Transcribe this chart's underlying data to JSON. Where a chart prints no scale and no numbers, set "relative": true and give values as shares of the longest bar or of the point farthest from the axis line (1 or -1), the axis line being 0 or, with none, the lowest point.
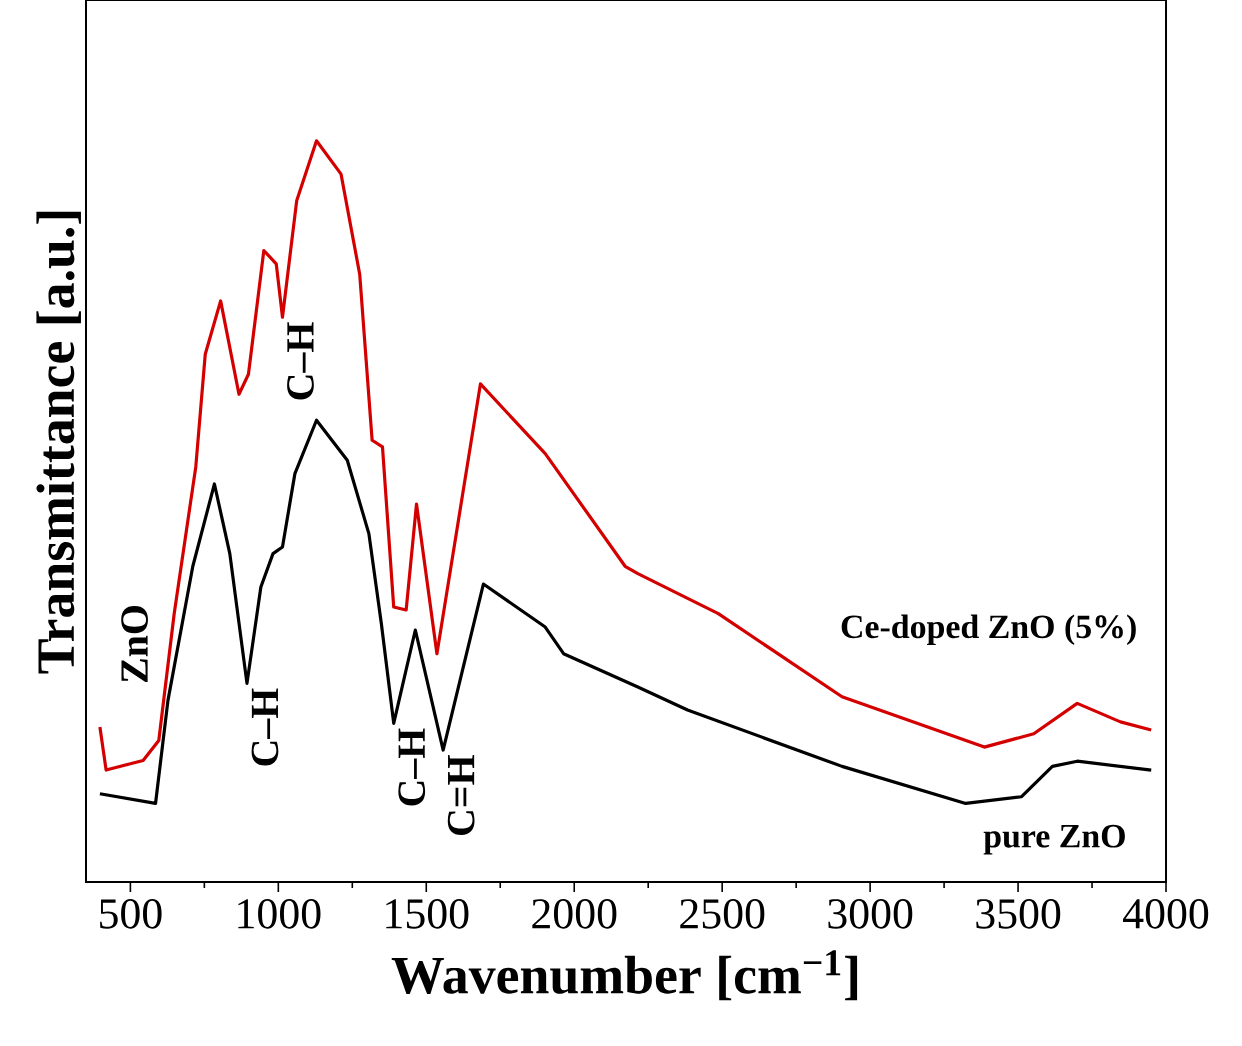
{
  "chart_data": {
    "type": "line",
    "xlabel": "Wavenumber [cm$^{−1}$]",
    "ylabel": "Transmittance [a.u.]",
    "relative": true,
    "xlim": [
      350,
      4000
    ],
    "xticks": [
      500,
      1000,
      1500,
      2000,
      2500,
      3000,
      3500,
      4000
    ],
    "legend": false,
    "marker": "none",
    "line_style": "solid",
    "annotations": [
      "ZnO",
      {
        "text": "C–H",
        "x": 894,
        "y": 0.268
      },
      {
        "text": "C–H",
        "x": 1014,
        "y": 0.762
      },
      {
        "text": "C–H",
        "x": 1390,
        "y": 0.214
      },
      {
        "text": "C=H",
        "x": 1557,
        "y": 0.178
      }
    ],
    "series": [
      {
        "name": "pure ZnO",
        "color": "#000000",
        "x": [
          397,
          585,
          627,
          711,
          784,
          836,
          894,
          941,
          982,
          1014,
          1056,
          1129,
          1233,
          1306,
          1348,
          1390,
          1463,
          1557,
          1693,
          1902,
          1964,
          2215,
          2383,
          2905,
          3323,
          3511,
          3616,
          3700,
          3950
        ],
        "values": [
          0.119,
          0.106,
          0.245,
          0.426,
          0.537,
          0.443,
          0.268,
          0.398,
          0.443,
          0.452,
          0.551,
          0.623,
          0.569,
          0.47,
          0.349,
          0.214,
          0.34,
          0.178,
          0.402,
          0.344,
          0.308,
          0.263,
          0.232,
          0.156,
          0.106,
          0.115,
          0.156,
          0.163,
          0.151
        ]
      },
      {
        "name": "Ce-doped ZnO (5%)",
        "color": "#d40000",
        "x": [
          397,
          418,
          543,
          596,
          648,
          721,
          753,
          805,
          867,
          899,
          951,
          993,
          1014,
          1062,
          1129,
          1212,
          1275,
          1317,
          1352,
          1390,
          1432,
          1467,
          1536,
          1683,
          1902,
          2172,
          2215,
          2487,
          2905,
          3386,
          3553,
          3700,
          3846,
          3950
        ],
        "values": [
          0.209,
          0.151,
          0.164,
          0.191,
          0.362,
          0.56,
          0.712,
          0.784,
          0.658,
          0.685,
          0.852,
          0.834,
          0.762,
          0.919,
          1,
          0.955,
          0.82,
          0.596,
          0.587,
          0.371,
          0.367,
          0.51,
          0.308,
          0.672,
          0.578,
          0.426,
          0.416,
          0.362,
          0.25,
          0.182,
          0.2,
          0.241,
          0.216,
          0.205
        ]
      }
    ]
  }
}
